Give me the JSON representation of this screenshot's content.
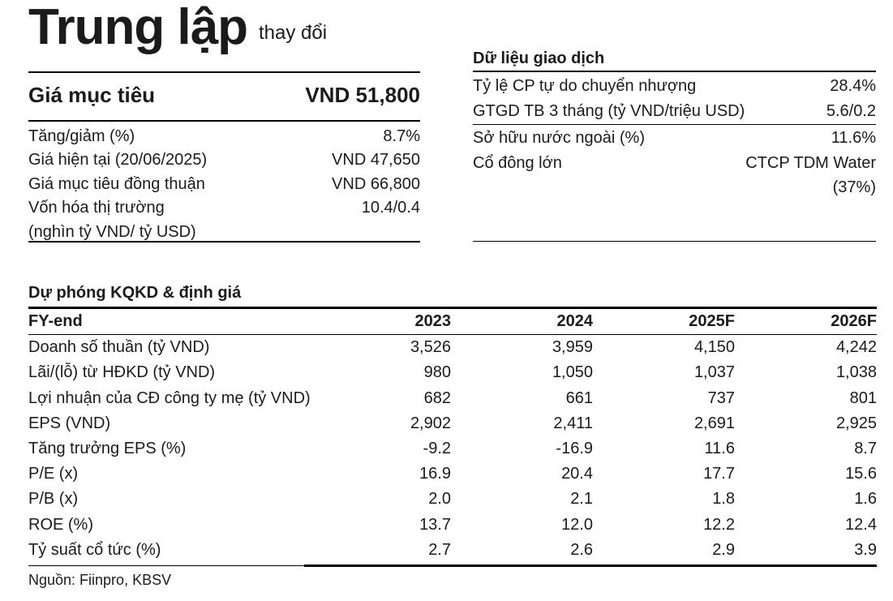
{
  "rating": {
    "label": "Trung lập",
    "note": "thay đổi"
  },
  "target_price": {
    "label": "Giá mục tiêu",
    "value": "VND 51,800"
  },
  "summary_rows": [
    {
      "label": "Tăng/giảm (%)",
      "value": "8.7%"
    },
    {
      "label": "Giá hiện tại (20/06/2025)",
      "value": "VND 47,650"
    },
    {
      "label": "Giá mục tiêu đồng thuận",
      "value": "VND 66,800"
    },
    {
      "label": "Vốn hóa thị trường",
      "value": "10.4/0.4"
    },
    {
      "label": "(nghìn tỷ VND/ tỷ USD)",
      "value": ""
    }
  ],
  "trading": {
    "title": "Dữ liệu giao dịch",
    "rows": [
      {
        "label": "Tỷ lệ CP tự do chuyển nhượng",
        "value": "28.4%"
      },
      {
        "label": "GTGD TB 3 tháng (tỷ VND/triệu USD)",
        "value": "5.6/0.2"
      },
      {
        "label": "Sở hữu nước ngoài (%)",
        "value": "11.6%"
      },
      {
        "label": "Cổ đông lớn",
        "value": "CTCP TDM Water",
        "value_line2": "(37%)"
      }
    ]
  },
  "forecast": {
    "title": "Dự phóng KQKD & định giá",
    "columns": [
      "FY-end",
      "2023",
      "2024",
      "2025F",
      "2026F"
    ],
    "rows": [
      {
        "label": "Doanh số thuần (tỷ VND)",
        "values": [
          "3,526",
          "3,959",
          "4,150",
          "4,242"
        ]
      },
      {
        "label": "Lãi/(lỗ) từ HĐKD (tỷ VND)",
        "values": [
          "980",
          "1,050",
          "1,037",
          "1,038"
        ]
      },
      {
        "label": "Lợi nhuận của CĐ công ty mẹ  (tỷ VND)",
        "values": [
          "682",
          "661",
          "737",
          "801"
        ]
      },
      {
        "label": "EPS (VND)",
        "values": [
          "2,902",
          "2,411",
          "2,691",
          "2,925"
        ]
      },
      {
        "label": "Tăng trưởng EPS (%)",
        "values": [
          "-9.2",
          "-16.9",
          "11.6",
          "8.7"
        ]
      },
      {
        "label": "P/E (x)",
        "values": [
          "16.9",
          "20.4",
          "17.7",
          "15.6"
        ]
      },
      {
        "label": "P/B (x)",
        "values": [
          "2.0",
          "2.1",
          "1.8",
          "1.6"
        ]
      },
      {
        "label": "ROE (%)",
        "values": [
          "13.7",
          "12.0",
          "12.2",
          "12.4"
        ]
      },
      {
        "label": "Tỷ suất cổ tức (%)",
        "values": [
          "2.7",
          "2.6",
          "2.9",
          "3.9"
        ]
      }
    ]
  },
  "source": "Nguồn: Fiinpro, KBSV"
}
